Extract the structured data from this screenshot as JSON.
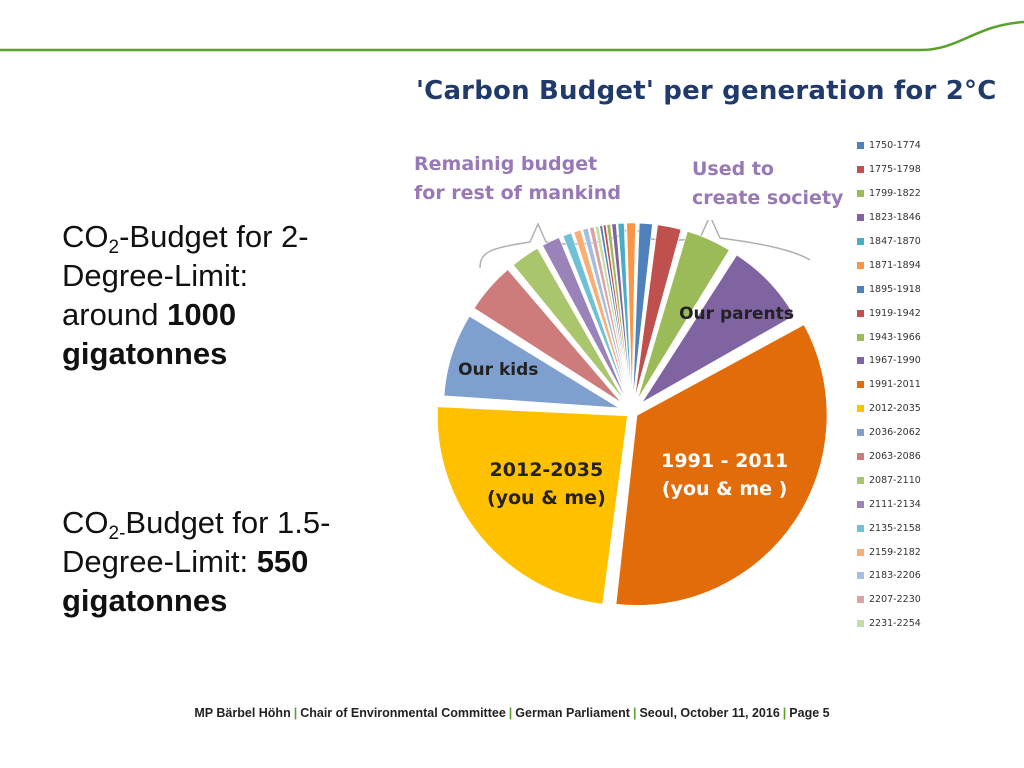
{
  "slide": {
    "block1": {
      "prefix": "CO",
      "sub": "2",
      "text1": "-Budget for 2-Degree-Limit: around ",
      "bold": "1000 gigatonnes"
    },
    "block2": {
      "prefix": "CO",
      "sub": "2-",
      "text1": "Budget for 1.5-Degree-Limit: ",
      "bold": "550 gigatonnes"
    },
    "footer": [
      "MP Bärbel Höhn",
      "Chair of Environmental Committee",
      "German Parliament",
      "Seoul, October 11, 2016",
      "Page 5"
    ]
  },
  "colors": {
    "accent_green": "#5aa02c",
    "title": "#1f3a6b",
    "annotation": "#9878b5"
  },
  "chart_data": {
    "type": "pie",
    "title": "'Carbon Budget' per generation for 2°C",
    "annotations": [
      {
        "text": [
          "Remainig budget",
          "for rest of mankind"
        ]
      },
      {
        "text": [
          "Used to",
          "create society"
        ]
      }
    ],
    "categories": [
      "1750-1774",
      "1775-1798",
      "1799-1822",
      "1823-1846",
      "1847-1870",
      "1871-1894",
      "1895-1918",
      "1919-1942",
      "1943-1966",
      "1967-1990",
      "1991-2011",
      "2012-2035",
      "2036-2062",
      "2063-2086",
      "2087-2110",
      "2111-2134",
      "2135-2158",
      "2159-2182",
      "2183-2206",
      "2207-2230",
      "2231-2254"
    ],
    "values": [
      0.3,
      0.3,
      0.4,
      0.5,
      0.7,
      1.0,
      1.5,
      2.5,
      4.5,
      8.0,
      35.0,
      24.0,
      8.0,
      5.0,
      3.0,
      2.0,
      1.0,
      0.8,
      0.6,
      0.5,
      0.4
    ],
    "colors": [
      "#4f81bd",
      "#c0504d",
      "#9bbb59",
      "#8064a2",
      "#4bacc6",
      "#f79646",
      "#4f81bd",
      "#c0504d",
      "#9bbb59",
      "#8064a2",
      "#e36c0a",
      "#ffc000",
      "#7f9fcf",
      "#cd7c7b",
      "#a9c66d",
      "#9a83b9",
      "#70c1d6",
      "#f9ae73",
      "#a4bde0",
      "#dba4a3",
      "#c7dba6"
    ],
    "slice_labels": [
      {
        "index": 10,
        "lines": [
          "1991 - 2011",
          "(you &  me )"
        ]
      },
      {
        "index": 11,
        "lines": [
          "2012-2035",
          "(you & me)"
        ]
      },
      {
        "index": 12,
        "lines": [
          "Our kids"
        ]
      },
      {
        "index": 9,
        "lines": [
          "Our parents"
        ]
      }
    ]
  }
}
